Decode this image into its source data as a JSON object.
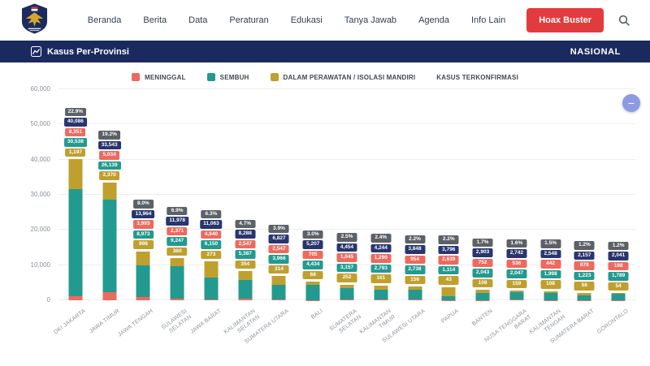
{
  "nav": {
    "items": [
      "Beranda",
      "Berita",
      "Data",
      "Peraturan",
      "Edukasi",
      "Tanya Jawab",
      "Agenda",
      "Info Lain"
    ],
    "hoax_buster_label": "Hoax Buster"
  },
  "header": {
    "title": "Kasus Per-Provinsi",
    "right_label": "NASIONAL"
  },
  "legend": [
    {
      "label": "MENINGGAL",
      "color": "#ed6a5e"
    },
    {
      "label": "SEMBUH",
      "color": "#239a8f"
    },
    {
      "label": "DALAM PERAWATAN / ISOLASI MANDIRI",
      "color": "#bfa02f"
    },
    {
      "label": "KASUS TERKONFIRMASI",
      "color": ""
    }
  ],
  "fab": {
    "collapse_label": "−"
  },
  "chart_data": {
    "type": "bar",
    "stacked": true,
    "title": "Kasus Per-Provinsi",
    "xlabel": "",
    "ylabel": "",
    "ylim": [
      0,
      60000
    ],
    "yticks": [
      "0",
      "10,000",
      "20,000",
      "30,000",
      "40,000",
      "50,000",
      "60,000"
    ],
    "grid": true,
    "legend_position": "top",
    "categories": [
      "DKI JAKARTA",
      "JAWA TIMUR",
      "JAWA TENGAH",
      "SULAWESI SELATAN",
      "JAWA BARAT",
      "KALIMANTAN SELATAN",
      "SUMATERA UTARA",
      "BALI",
      "SUMATERA SELATAN",
      "KALIMANTAN TIMUR",
      "SULAWESI UTARA",
      "PAPUA",
      "BANTEN",
      "NUSA TENGGARA BARAT",
      "KALIMANTAN TENGAH",
      "SUMATERA BARAT",
      "GORONTALO"
    ],
    "series": [
      {
        "name": "MENINGGAL",
        "color": "#ed6a5e",
        "values": [
          1197,
          2370,
          998,
          360,
          273,
          354,
          314,
          68,
          252,
          161,
          156,
          43,
          108,
          159,
          108,
          56,
          54
        ]
      },
      {
        "name": "SEMBUH",
        "color": "#239a8f",
        "values": [
          30538,
          26139,
          8973,
          9247,
          6150,
          5387,
          3966,
          4434,
          3157,
          2793,
          2738,
          1114,
          2043,
          2047,
          1998,
          1223,
          1789
        ]
      },
      {
        "name": "DALAM PERAWATAN / ISOLASI MANDIRI",
        "color": "#bfa02f",
        "values": [
          8351,
          5034,
          3993,
          2371,
          4640,
          2547,
          2547,
          705,
          1045,
          1290,
          954,
          2639,
          752,
          536,
          442,
          878,
          198
        ]
      }
    ],
    "totals": [
      40086,
      33543,
      13964,
      11978,
      11063,
      8288,
      6827,
      5207,
      4454,
      4244,
      3848,
      3796,
      2903,
      2742,
      2548,
      2157,
      2041
    ],
    "percent_labels": [
      "22.9%",
      "19.2%",
      "8.0%",
      "6.9%",
      "6.3%",
      "4.7%",
      "3.9%",
      "3.0%",
      "2.5%",
      "2.4%",
      "2.2%",
      "2.2%",
      "1.7%",
      "1.6%",
      "1.5%",
      "1.2%",
      "1.2%"
    ],
    "bar_label_rows": [
      "percent",
      "total(navy)",
      "dalam-perawatan(red chip)",
      "sembuh(teal chip)",
      "meninggal(gold chip)"
    ]
  }
}
